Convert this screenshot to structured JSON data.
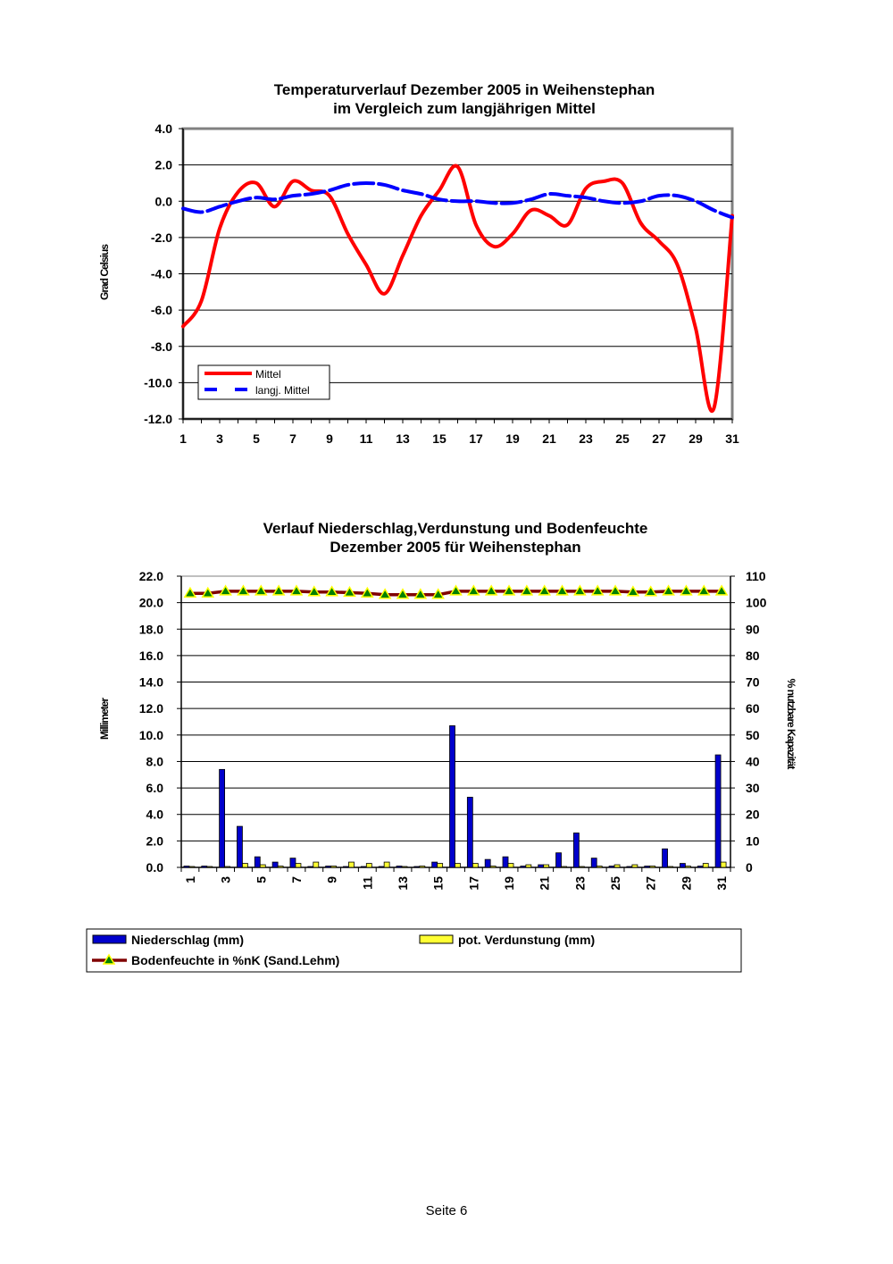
{
  "chart_data": [
    {
      "type": "line",
      "title": [
        "Temperaturverlauf Dezember 2005 in Weihenstephan",
        "im Vergleich zum langjährigen Mittel"
      ],
      "xlabel": "",
      "ylabel": "Grad Celsius",
      "ylim": [
        -12,
        4
      ],
      "yticks": [
        "4.0",
        "2.0",
        "0.0",
        "-2.0",
        "-4.0",
        "-6.0",
        "-8.0",
        "-10.0",
        "-12.0"
      ],
      "xticks": [
        "1",
        "3",
        "5",
        "7",
        "9",
        "11",
        "13",
        "15",
        "17",
        "19",
        "21",
        "23",
        "25",
        "27",
        "29",
        "31"
      ],
      "grid": true,
      "legend_position": "bottom-left",
      "x": [
        1,
        2,
        3,
        4,
        5,
        6,
        7,
        8,
        9,
        10,
        11,
        12,
        13,
        14,
        15,
        16,
        17,
        18,
        19,
        20,
        21,
        22,
        23,
        24,
        25,
        26,
        27,
        28,
        29,
        30,
        31
      ],
      "series": [
        {
          "name": "Mittel",
          "color": "#ff0000",
          "style": "solid",
          "values": [
            -6.9,
            -5.5,
            -1.5,
            0.5,
            1.0,
            -0.3,
            1.1,
            0.6,
            0.3,
            -1.8,
            -3.5,
            -5.1,
            -3.0,
            -0.8,
            0.6,
            1.9,
            -1.3,
            -2.5,
            -1.8,
            -0.5,
            -0.8,
            -1.3,
            0.7,
            1.1,
            1.0,
            -1.2,
            -2.2,
            -3.5,
            -7.0,
            -11.4,
            -0.8
          ]
        },
        {
          "name": "langj. Mittel",
          "color": "#0000ff",
          "style": "dashed",
          "values": [
            -0.4,
            -0.6,
            -0.3,
            0.0,
            0.2,
            0.1,
            0.3,
            0.4,
            0.6,
            0.9,
            1.0,
            0.9,
            0.6,
            0.4,
            0.1,
            0.0,
            0.0,
            -0.1,
            -0.1,
            0.1,
            0.4,
            0.3,
            0.2,
            0.0,
            -0.1,
            0.0,
            0.3,
            0.3,
            0.0,
            -0.5,
            -0.9
          ]
        }
      ]
    },
    {
      "type": "bar",
      "title": [
        "Verlauf Niederschlag,Verdunstung und Bodenfeuchte",
        "Dezember 2005 für Weihenstephan"
      ],
      "ylabel": "Millimeter",
      "y2label": "% nutzbare Kapazität",
      "ylim": [
        0,
        22
      ],
      "y2lim": [
        0,
        110
      ],
      "yticks": [
        "22.0",
        "20.0",
        "18.0",
        "16.0",
        "14.0",
        "12.0",
        "10.0",
        "8.0",
        "6.0",
        "4.0",
        "2.0",
        "0.0"
      ],
      "y2ticks": [
        "110",
        "100",
        "90",
        "80",
        "70",
        "60",
        "50",
        "40",
        "30",
        "20",
        "10",
        "0"
      ],
      "xticks": [
        "1",
        "3",
        "5",
        "7",
        "9",
        "11",
        "13",
        "15",
        "17",
        "19",
        "21",
        "23",
        "25",
        "27",
        "29",
        "31"
      ],
      "grid": true,
      "legend_position": "bottom",
      "x": [
        1,
        2,
        3,
        4,
        5,
        6,
        7,
        8,
        9,
        10,
        11,
        12,
        13,
        14,
        15,
        16,
        17,
        18,
        19,
        20,
        21,
        22,
        23,
        24,
        25,
        26,
        27,
        28,
        29,
        30,
        31
      ],
      "series": [
        {
          "name": "Niederschlag (mm)",
          "color": "#0000cc",
          "axis": "left",
          "kind": "bar",
          "values": [
            0.1,
            0.1,
            7.4,
            3.1,
            0.8,
            0.4,
            0.7,
            0.0,
            0.1,
            0.0,
            0.0,
            0.0,
            0.1,
            0.0,
            0.4,
            10.7,
            5.3,
            0.6,
            0.8,
            0.1,
            0.2,
            1.1,
            2.6,
            0.7,
            0.1,
            0.0,
            0.1,
            1.4,
            0.3,
            0.1,
            8.5
          ]
        },
        {
          "name": "pot. Verdunstung (mm)",
          "color": "#ffff33",
          "axis": "left",
          "kind": "bar",
          "values": [
            0.05,
            0.05,
            0.05,
            0.3,
            0.2,
            0.1,
            0.3,
            0.4,
            0.1,
            0.4,
            0.3,
            0.4,
            0.05,
            0.1,
            0.3,
            0.3,
            0.3,
            0.1,
            0.3,
            0.2,
            0.2,
            0.05,
            0.05,
            0.1,
            0.2,
            0.2,
            0.1,
            0.05,
            0.1,
            0.3,
            0.4
          ]
        },
        {
          "name": "Bodenfeuchte in %nK (Sand.Lehm)",
          "color": "#800000",
          "marker_color": "#008000",
          "axis": "right",
          "kind": "line",
          "values": [
            103.5,
            103.5,
            104.3,
            104.3,
            104.3,
            104.3,
            104.3,
            104,
            104,
            103.8,
            103.5,
            103,
            103,
            103,
            103,
            104.3,
            104.3,
            104.3,
            104.3,
            104.3,
            104.3,
            104.3,
            104.3,
            104.3,
            104.3,
            104,
            104,
            104.3,
            104.3,
            104.3,
            104.3
          ]
        }
      ]
    }
  ],
  "footer": "Seite 6"
}
